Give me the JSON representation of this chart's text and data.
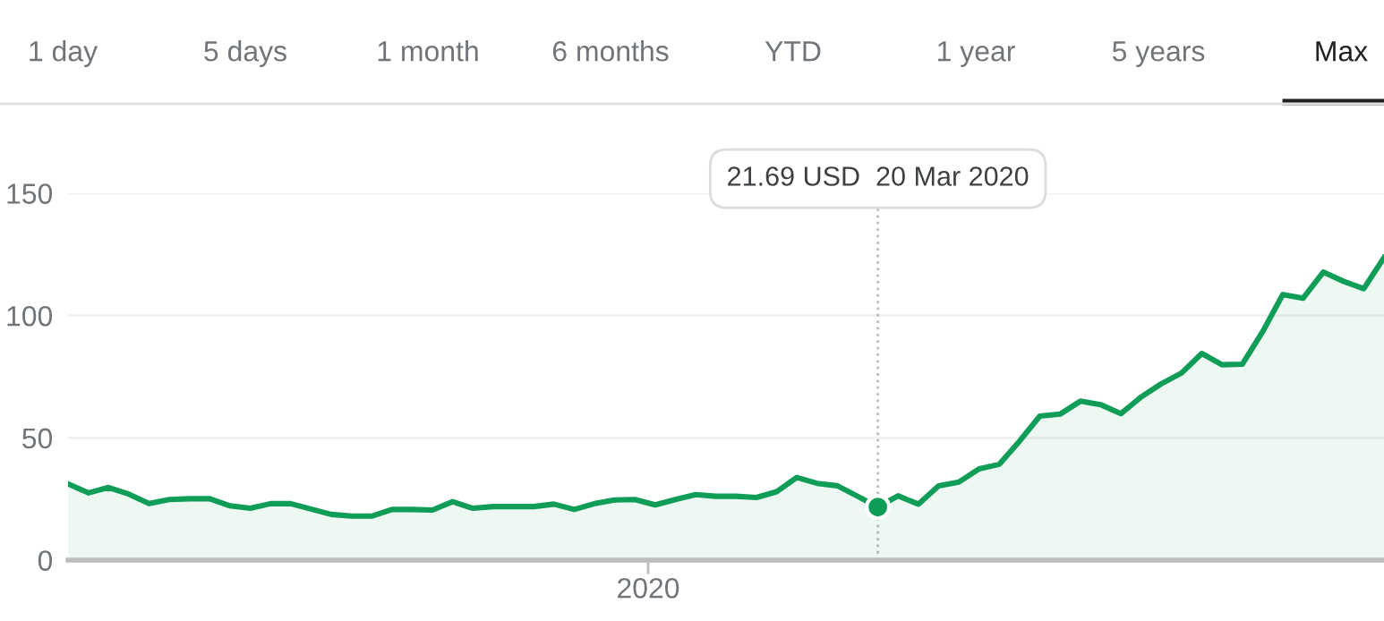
{
  "chart_data": {
    "type": "area",
    "categories": [
      null,
      null,
      null,
      null,
      null,
      null,
      null,
      null,
      null,
      null,
      null,
      null,
      null,
      null,
      null,
      null,
      null,
      null,
      null,
      null,
      null,
      null,
      null,
      null,
      null,
      null,
      null,
      null,
      null,
      null,
      null,
      null,
      null,
      null,
      null,
      null,
      null,
      null,
      null,
      null,
      null,
      null,
      null,
      null,
      null,
      null,
      null,
      null,
      null,
      null,
      null,
      null,
      null,
      null,
      null,
      null,
      null,
      null,
      null,
      null,
      null,
      null,
      null,
      null,
      null,
      null
    ],
    "series": [
      {
        "color": "#0f9d58",
        "values": [
          31.2,
          27.5,
          29.7,
          27.0,
          23.1,
          24.8,
          25.1,
          25.1,
          22.2,
          21.2,
          23.1,
          23.1,
          20.9,
          18.7,
          18.0,
          18.0,
          20.7,
          20.7,
          20.5,
          23.9,
          21.2,
          21.9,
          21.9,
          21.9,
          22.9,
          20.7,
          23.1,
          24.6,
          24.8,
          22.6,
          24.8,
          26.8,
          26.1,
          26.1,
          25.6,
          28.0,
          33.8,
          31.4,
          30.4,
          26.1,
          21.69,
          26.3,
          22.9,
          30.4,
          31.9,
          37.3,
          39.2,
          48.7,
          58.9,
          59.7,
          65.0,
          63.6,
          59.9,
          66.7,
          72.1,
          76.5,
          84.5,
          79.9,
          80.1,
          93.3,
          108.6,
          107.1,
          117.8,
          114.0,
          111.0,
          123.7
        ]
      },
      {
        "type": "scatter",
        "color": "#0f9d58",
        "values": [
          null,
          null,
          null,
          null,
          null,
          null,
          null,
          null,
          null,
          null,
          null,
          null,
          null,
          null,
          null,
          null,
          null,
          null,
          null,
          null,
          null,
          null,
          null,
          null,
          null,
          null,
          null,
          null,
          null,
          null,
          null,
          null,
          null,
          null,
          null,
          null,
          null,
          null,
          null,
          null,
          21.69,
          null,
          null,
          null,
          null,
          null,
          null,
          null,
          null,
          null,
          null,
          null,
          null,
          null,
          null,
          null,
          null,
          null,
          null,
          null,
          null,
          null,
          null,
          null,
          null,
          null
        ]
      }
    ],
    "ylim": [
      0,
      150
    ],
    "yticks": [
      0,
      50,
      100,
      150
    ],
    "grid": "y",
    "annotations": [
      "1 day",
      "5 days",
      "1 month",
      "6 months",
      "YTD",
      "1 year",
      "5 years",
      "Max",
      "2020",
      "21.69 USD  20 Mar 2020"
    ]
  }
}
